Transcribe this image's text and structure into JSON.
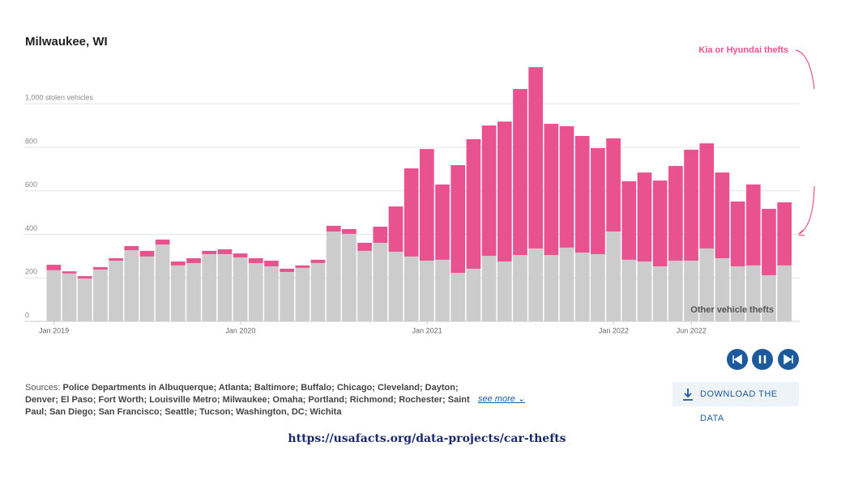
{
  "chart_data": {
    "type": "stacked_bar",
    "title": "Milwaukee, WI",
    "categories": [
      "Jan 2019",
      null,
      null,
      null,
      null,
      null,
      null,
      null,
      null,
      null,
      null,
      null,
      "Jan 2020",
      null,
      null,
      null,
      null,
      null,
      null,
      null,
      null,
      null,
      null,
      null,
      "Jan 2021",
      null,
      null,
      null,
      null,
      null,
      null,
      null,
      null,
      null,
      null,
      null,
      "Jan 2022",
      null,
      null,
      null,
      null,
      "Jun 2022",
      null,
      null,
      null,
      null,
      null,
      null
    ],
    "series": [
      {
        "name": "Other vehicle thefts",
        "color": "#cccccc",
        "values": [
          235,
          220,
          197,
          238,
          279,
          327,
          298,
          353,
          257,
          268,
          309,
          309,
          294,
          268,
          253,
          227,
          246,
          268,
          413,
          402,
          324,
          361,
          320,
          298,
          279,
          283,
          223,
          242,
          301,
          275,
          305,
          335,
          305,
          339,
          316,
          309,
          413,
          283,
          275,
          253,
          279,
          279,
          335,
          290,
          253,
          257,
          212,
          257
        ]
      },
      {
        "name": "Kia or Hyundai thefts",
        "color": "#e8528f",
        "values": [
          25,
          10,
          11,
          11,
          11,
          19,
          26,
          23,
          18,
          22,
          15,
          22,
          18,
          22,
          26,
          15,
          11,
          15,
          26,
          22,
          37,
          74,
          208,
          405,
          513,
          346,
          495,
          595,
          599,
          643,
          763,
          833,
          603,
          558,
          536,
          487,
          428,
          361,
          409,
          394,
          435,
          510,
          483,
          394,
          298,
          372,
          305,
          290
        ]
      }
    ],
    "ylim": [
      0,
      1200
    ],
    "yticks": [
      0,
      200,
      400,
      600,
      800,
      {
        "value": 1000,
        "label": "1,000 stolen vehicles"
      }
    ],
    "grid": true
  },
  "footer": {
    "sources_label": "Sources:",
    "sources": "Police Departments in Albuquerque; Atlanta; Baltimore; Buffalo; Chicago; Cleveland; Dayton; Denver; El Paso; Fort Worth; Louisville Metro; Milwaukee; Omaha; Portland; Richmond; Rochester; Saint Paul; San Diego; San Francisco; Seattle; Tucson; Washington, DC; Wichita",
    "see_more": "see more",
    "download": "DOWNLOAD THE DATA",
    "url": "https://usafacts.org/data-projects/car-thefts"
  }
}
